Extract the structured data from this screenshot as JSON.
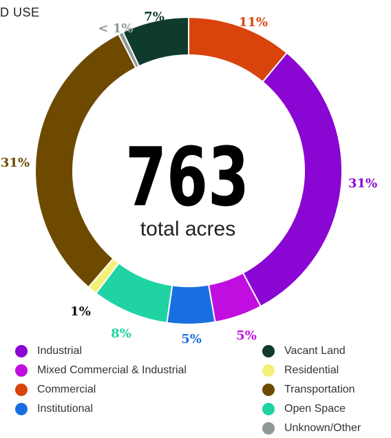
{
  "title": "D USE",
  "center": {
    "value": "763",
    "label": "total acres"
  },
  "chart_data": {
    "type": "pie",
    "donut": true,
    "slices": [
      {
        "name": "Commercial",
        "value": 11,
        "label": "11%",
        "color": "#D9440C"
      },
      {
        "name": "Industrial",
        "value": 31,
        "label": "31%",
        "color": "#8A06D2"
      },
      {
        "name": "Mixed Commercial & Industrial",
        "value": 5,
        "label": "5%",
        "color": "#C10EE0"
      },
      {
        "name": "Institutional",
        "value": 5,
        "label": "5%",
        "color": "#1A6FE0"
      },
      {
        "name": "Open Space",
        "value": 8,
        "label": "8%",
        "color": "#1FD3A3"
      },
      {
        "name": "Residential",
        "value": 1,
        "label": "1%",
        "color": "#F3F07A"
      },
      {
        "name": "Transportation",
        "value": 31,
        "label": "31%",
        "color": "#6E4A00"
      },
      {
        "name": "Unknown/Other",
        "value": 0.5,
        "label": "< 1%",
        "color": "#8E9A93"
      },
      {
        "name": "Vacant Land",
        "value": 7,
        "label": "7%",
        "color": "#0F3A2E"
      }
    ],
    "legend_left": [
      "Industrial",
      "Mixed Commercial & Industrial",
      "Commercial",
      "Institutional"
    ],
    "legend_right": [
      "Vacant Land",
      "Residential",
      "Transportation",
      "Open Space",
      "Unknown/Other"
    ]
  }
}
